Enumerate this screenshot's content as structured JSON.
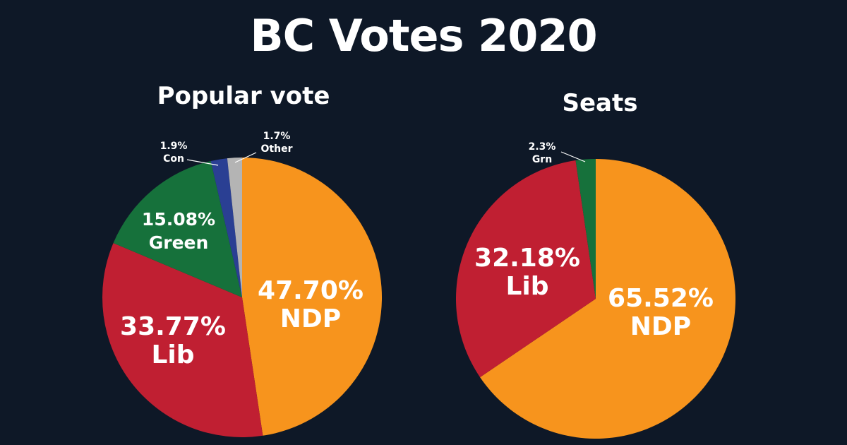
{
  "title": "BC Votes 2020",
  "colors": {
    "background": "#0e1827",
    "NDP": "#f7941d",
    "Lib": "#c01f32",
    "Green": "#16713b",
    "Con": "#2a3f93",
    "Other": "#b4b4b4",
    "Grn": "#16713b"
  },
  "chart_data": [
    {
      "type": "pie",
      "title": "Popular vote",
      "slices": [
        {
          "label": "NDP",
          "value": 47.7,
          "value_text": "47.70%",
          "color": "#f7941d"
        },
        {
          "label": "Lib",
          "value": 33.77,
          "value_text": "33.77%",
          "color": "#c01f32"
        },
        {
          "label": "Green",
          "value": 15.08,
          "value_text": "15.08%",
          "color": "#16713b"
        },
        {
          "label": "Con",
          "value": 1.9,
          "value_text": "1.9%",
          "color": "#2a3f93"
        },
        {
          "label": "Other",
          "value": 1.7,
          "value_text": "1.7%",
          "color": "#b4b4b4"
        }
      ]
    },
    {
      "type": "pie",
      "title": "Seats",
      "slices": [
        {
          "label": "NDP",
          "value": 65.52,
          "value_text": "65.52%",
          "color": "#f7941d"
        },
        {
          "label": "Lib",
          "value": 32.18,
          "value_text": "32.18%",
          "color": "#c01f32"
        },
        {
          "label": "Grn",
          "value": 2.3,
          "value_text": "2.3%",
          "color": "#16713b"
        }
      ]
    }
  ]
}
